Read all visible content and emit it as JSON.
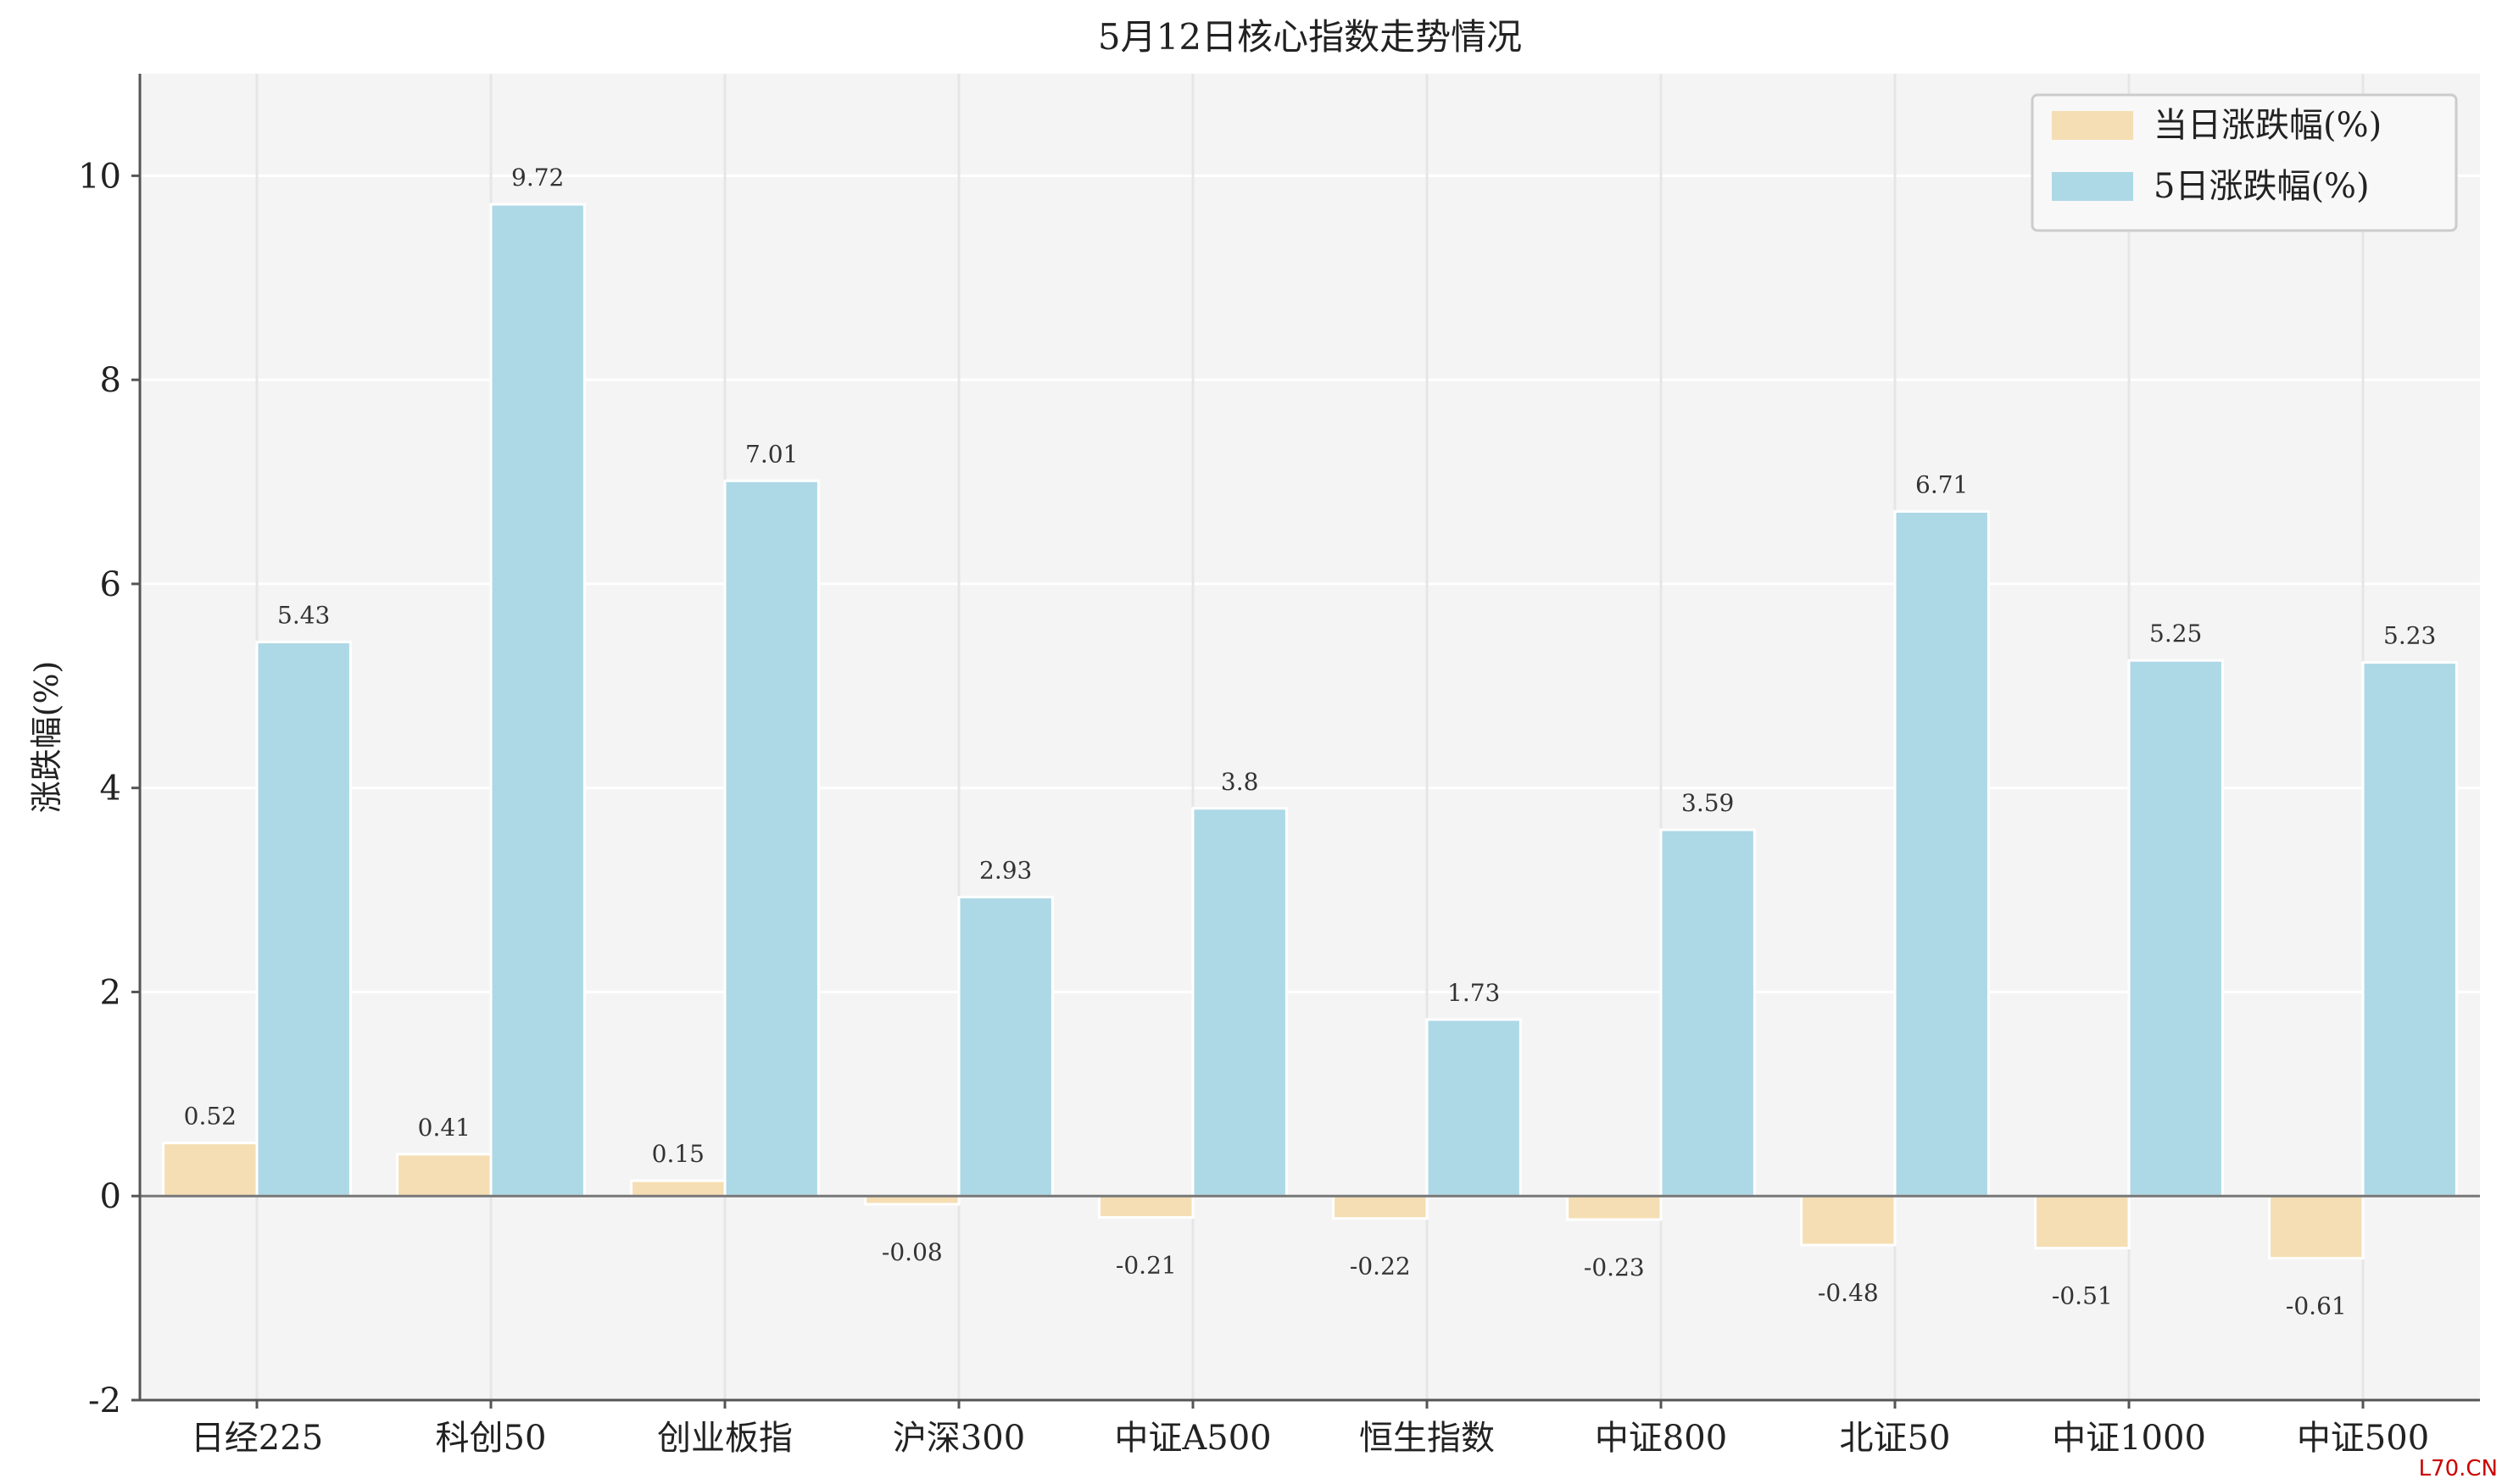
{
  "chart_data": {
    "type": "bar",
    "title": "5月12日核心指数走势情况",
    "ylabel": "涨跌幅(%)",
    "xlabel": "",
    "ylim": [
      -2,
      11
    ],
    "yticks": [
      -2,
      0,
      2,
      4,
      6,
      8,
      10
    ],
    "grid": true,
    "legend_position": "top-right",
    "categories": [
      "日经225",
      "科创50",
      "创业板指",
      "沪深300",
      "中证A500",
      "恒生指数",
      "中证800",
      "北证50",
      "中证1000",
      "中证500"
    ],
    "series": [
      {
        "name": "当日涨跌幅(%)",
        "color": "#f5deb3",
        "values": [
          0.52,
          0.41,
          0.15,
          -0.08,
          -0.21,
          -0.22,
          -0.23,
          -0.48,
          -0.51,
          -0.61
        ],
        "labels": [
          "0.52",
          "0.41",
          "0.15",
          "-0.08",
          "-0.21",
          "-0.22",
          "-0.23",
          "-0.48",
          "-0.51",
          "-0.61"
        ]
      },
      {
        "name": "5日涨跌幅(%)",
        "color": "#add8e6",
        "values": [
          5.43,
          9.72,
          7.01,
          2.93,
          3.8,
          1.73,
          3.59,
          6.71,
          5.25,
          5.23
        ],
        "labels": [
          "5.43",
          "9.72",
          "7.01",
          "2.93",
          "3.8",
          "1.73",
          "3.59",
          "6.71",
          "5.25",
          "5.23"
        ]
      }
    ]
  },
  "watermark": "L70.CN",
  "colors": {
    "plot_background": "#f4f4f4",
    "grid": "#ffffff",
    "axis": "#555555",
    "watermark": "#cc0000"
  }
}
